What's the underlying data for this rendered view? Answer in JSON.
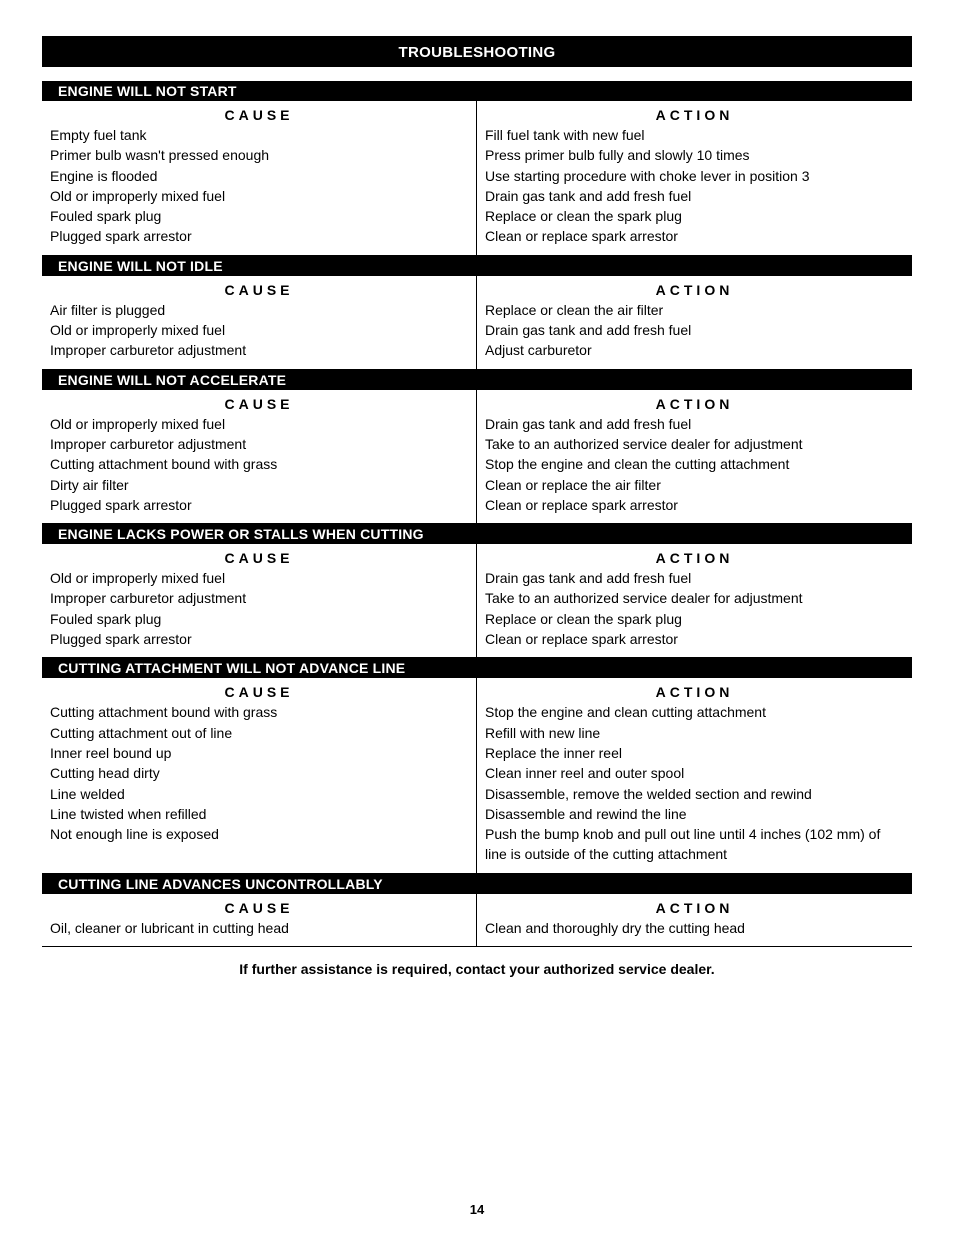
{
  "page": {
    "title": "TROUBLESHOOTING",
    "footnote": "If further assistance is required, contact your authorized service dealer.",
    "page_number": "14",
    "col_cause_label": "CAUSE",
    "col_action_label": "ACTION",
    "colors": {
      "bar_bg": "#000000",
      "bar_text": "#ffffff",
      "body_text": "#000000",
      "page_bg": "#ffffff",
      "divider": "#000000"
    },
    "font_sizes": {
      "title_pt": 15,
      "section_title_pt": 14,
      "col_header_pt": 14,
      "body_pt": 14,
      "page_number_pt": 13
    }
  },
  "sections": [
    {
      "title": "ENGINE WILL NOT START",
      "causes": [
        "Empty fuel tank",
        "Primer bulb wasn't pressed enough",
        "Engine is flooded",
        "Old or improperly mixed fuel",
        "Fouled spark plug",
        "Plugged spark arrestor"
      ],
      "actions": [
        "Fill fuel tank with new fuel",
        "Press primer bulb fully and slowly 10 times",
        "Use starting procedure with choke lever in position 3",
        "Drain gas tank and add fresh fuel",
        "Replace or clean the spark plug",
        "Clean or replace spark arrestor"
      ]
    },
    {
      "title": "ENGINE WILL NOT IDLE",
      "causes": [
        "Air filter is plugged",
        "Old or improperly mixed fuel",
        "Improper carburetor adjustment"
      ],
      "actions": [
        "Replace or clean the air filter",
        "Drain gas tank and add fresh fuel",
        "Adjust carburetor"
      ]
    },
    {
      "title": "ENGINE WILL NOT ACCELERATE",
      "causes": [
        "Old or improperly mixed fuel",
        "Improper carburetor adjustment",
        "Cutting attachment bound with grass",
        "Dirty air filter",
        "Plugged spark arrestor"
      ],
      "actions": [
        "Drain gas tank and add fresh fuel",
        "Take to an authorized service dealer for adjustment",
        "Stop the engine and clean the cutting attachment",
        "Clean or replace the air filter",
        "Clean or replace spark arrestor"
      ]
    },
    {
      "title": "ENGINE LACKS POWER OR STALLS WHEN CUTTING",
      "causes": [
        "Old or improperly mixed fuel",
        "Improper carburetor adjustment",
        "Fouled spark plug",
        "Plugged spark arrestor"
      ],
      "actions": [
        "Drain gas tank and add fresh fuel",
        "Take to an authorized service dealer for adjustment",
        "Replace or clean the spark plug",
        "Clean or replace spark arrestor"
      ]
    },
    {
      "title": "CUTTING ATTACHMENT WILL NOT ADVANCE LINE",
      "causes": [
        "Cutting attachment bound with grass",
        "Cutting attachment out of line",
        "Inner reel bound up",
        "Cutting head dirty",
        "Line welded",
        "Line twisted when refilled",
        "Not enough line is exposed"
      ],
      "actions": [
        "Stop the engine and clean cutting attachment",
        "Refill with new line",
        "Replace the inner reel",
        "Clean inner reel and outer spool",
        "Disassemble, remove the welded section and rewind",
        "Disassemble and rewind the line",
        "Push the bump knob and pull out line until 4 inches (102 mm) of line is outside of the cutting attachment"
      ]
    },
    {
      "title": "CUTTING LINE ADVANCES UNCONTROLLABLY",
      "causes": [
        "Oil, cleaner or lubricant in cutting head"
      ],
      "actions": [
        "Clean and thoroughly dry the cutting head"
      ]
    }
  ]
}
